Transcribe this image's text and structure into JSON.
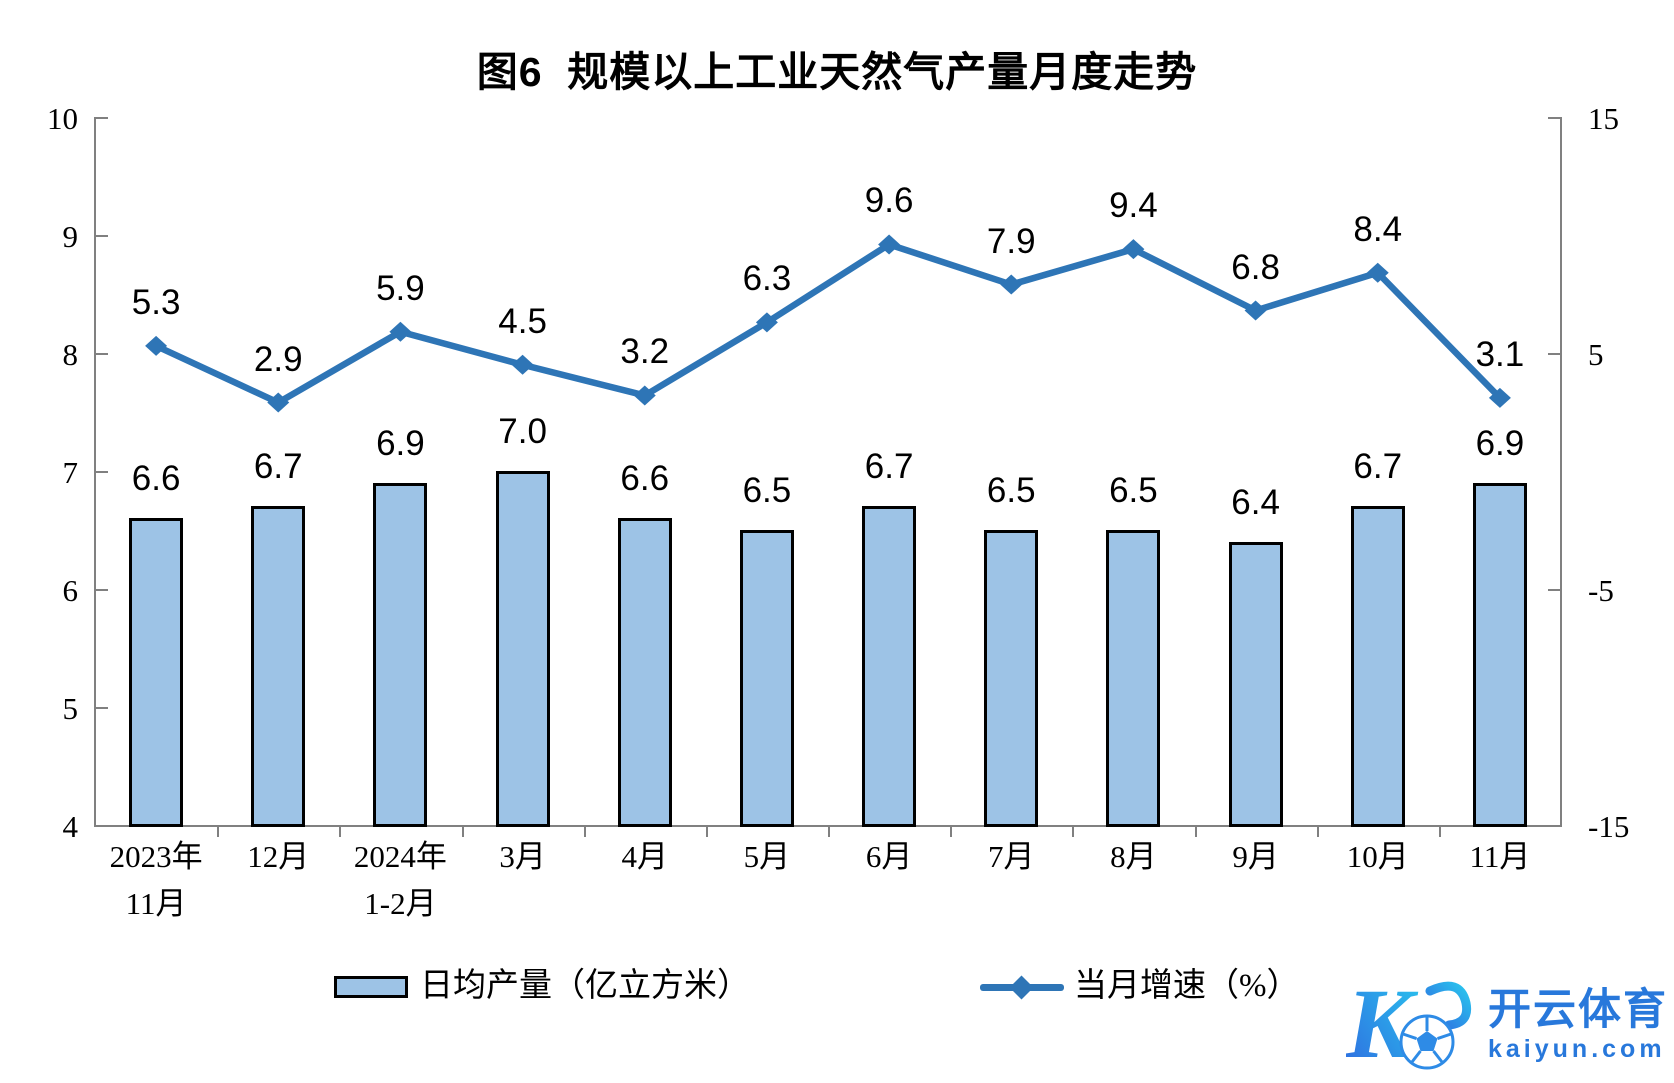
{
  "chart_data": {
    "type": "bar+line",
    "title": "图6  规模以上工业天然气产量月度走势",
    "categories": [
      [
        "2023年",
        "11月"
      ],
      [
        "12月"
      ],
      [
        "2024年",
        "1-2月"
      ],
      [
        "3月"
      ],
      [
        "4月"
      ],
      [
        "5月"
      ],
      [
        "6月"
      ],
      [
        "7月"
      ],
      [
        "8月"
      ],
      [
        "9月"
      ],
      [
        "10月"
      ],
      [
        "11月"
      ]
    ],
    "series": [
      {
        "name": "日均产量（亿立方米）",
        "type": "bar",
        "axis": "left",
        "values": [
          6.6,
          6.7,
          6.9,
          7.0,
          6.6,
          6.5,
          6.7,
          6.5,
          6.5,
          6.4,
          6.7,
          6.9
        ],
        "fill": "#9DC3E6",
        "border": "#000000"
      },
      {
        "name": "当月增速（%）",
        "type": "line",
        "axis": "right",
        "values": [
          5.3,
          2.9,
          5.9,
          4.5,
          3.2,
          6.3,
          9.6,
          7.9,
          9.4,
          6.8,
          8.4,
          3.1
        ],
        "color": "#2E75B6"
      }
    ],
    "left_axis": {
      "min": 4,
      "max": 10,
      "tick_labels": [
        "10",
        "9",
        "8",
        "7",
        "6",
        "5",
        "4"
      ],
      "tick_values": [
        10,
        9,
        8,
        7,
        6,
        5,
        4
      ]
    },
    "right_axis": {
      "min": -15,
      "max": 15,
      "tick_labels": [
        "15",
        "5",
        "-5",
        "-15"
      ],
      "tick_values": [
        15,
        5,
        -5,
        -15
      ]
    },
    "grid": false,
    "legend_position": "bottom",
    "colors": {
      "axis": "#808080",
      "bar_fill": "#9DC3E6",
      "bar_border": "#000000",
      "line": "#2E75B6",
      "label": "#000000"
    }
  },
  "watermark": {
    "monogram": "K",
    "brand": "开云体育",
    "domain": "kaiyun.com",
    "colors": {
      "blue": "#2f6ae0",
      "cyan": "#29c5ee",
      "text": "#2878DB",
      "ball": "#2e8be6"
    }
  }
}
